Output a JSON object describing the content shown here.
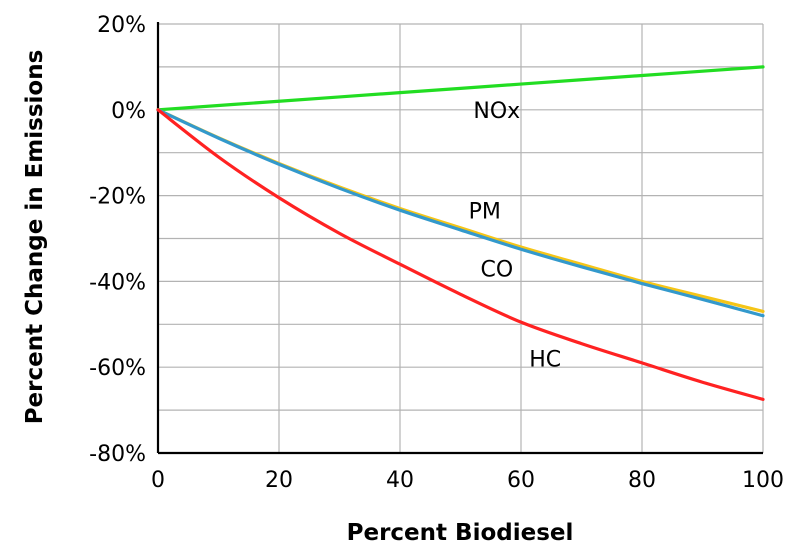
{
  "chart_data": {
    "type": "line",
    "title": "",
    "xlabel": "Percent Biodiesel",
    "ylabel": "Percent Change in Emissions",
    "xlim": [
      0,
      100
    ],
    "ylim": [
      -80,
      20
    ],
    "x_ticks": [
      0,
      20,
      40,
      60,
      80,
      100
    ],
    "y_ticks": [
      20,
      0,
      -20,
      -40,
      -60,
      -80
    ],
    "x_tick_labels": [
      "0",
      "20",
      "40",
      "60",
      "80",
      "100"
    ],
    "y_tick_labels": [
      "20%",
      "0%",
      "-20%",
      "-40%",
      "-60%",
      "-80%"
    ],
    "grid": true,
    "series": [
      {
        "name": "NOx",
        "color": "#22dd22",
        "x": [
          0,
          20,
          40,
          60,
          80,
          100
        ],
        "y": [
          0,
          2,
          4,
          6,
          8,
          10
        ]
      },
      {
        "name": "PM",
        "color": "#f5c518",
        "x": [
          0,
          10,
          20,
          30,
          40,
          50,
          60,
          70,
          80,
          90,
          100
        ],
        "y": [
          0,
          -6.5,
          -12.5,
          -18,
          -23,
          -27.5,
          -32,
          -36,
          -40,
          -43.5,
          -47
        ]
      },
      {
        "name": "CO",
        "color": "#3399cc",
        "x": [
          0,
          10,
          20,
          30,
          40,
          50,
          60,
          70,
          80,
          90,
          100
        ],
        "y": [
          0,
          -6.6,
          -12.7,
          -18.3,
          -23.4,
          -28,
          -32.5,
          -36.6,
          -40.5,
          -44.2,
          -48
        ]
      },
      {
        "name": "HC",
        "color": "#ff2222",
        "x": [
          0,
          10,
          20,
          30,
          40,
          50,
          60,
          70,
          80,
          90,
          100
        ],
        "y": [
          0,
          -11,
          -20.5,
          -28.8,
          -36,
          -43,
          -49.5,
          -54.5,
          -59,
          -63.5,
          -67.5
        ]
      }
    ]
  }
}
